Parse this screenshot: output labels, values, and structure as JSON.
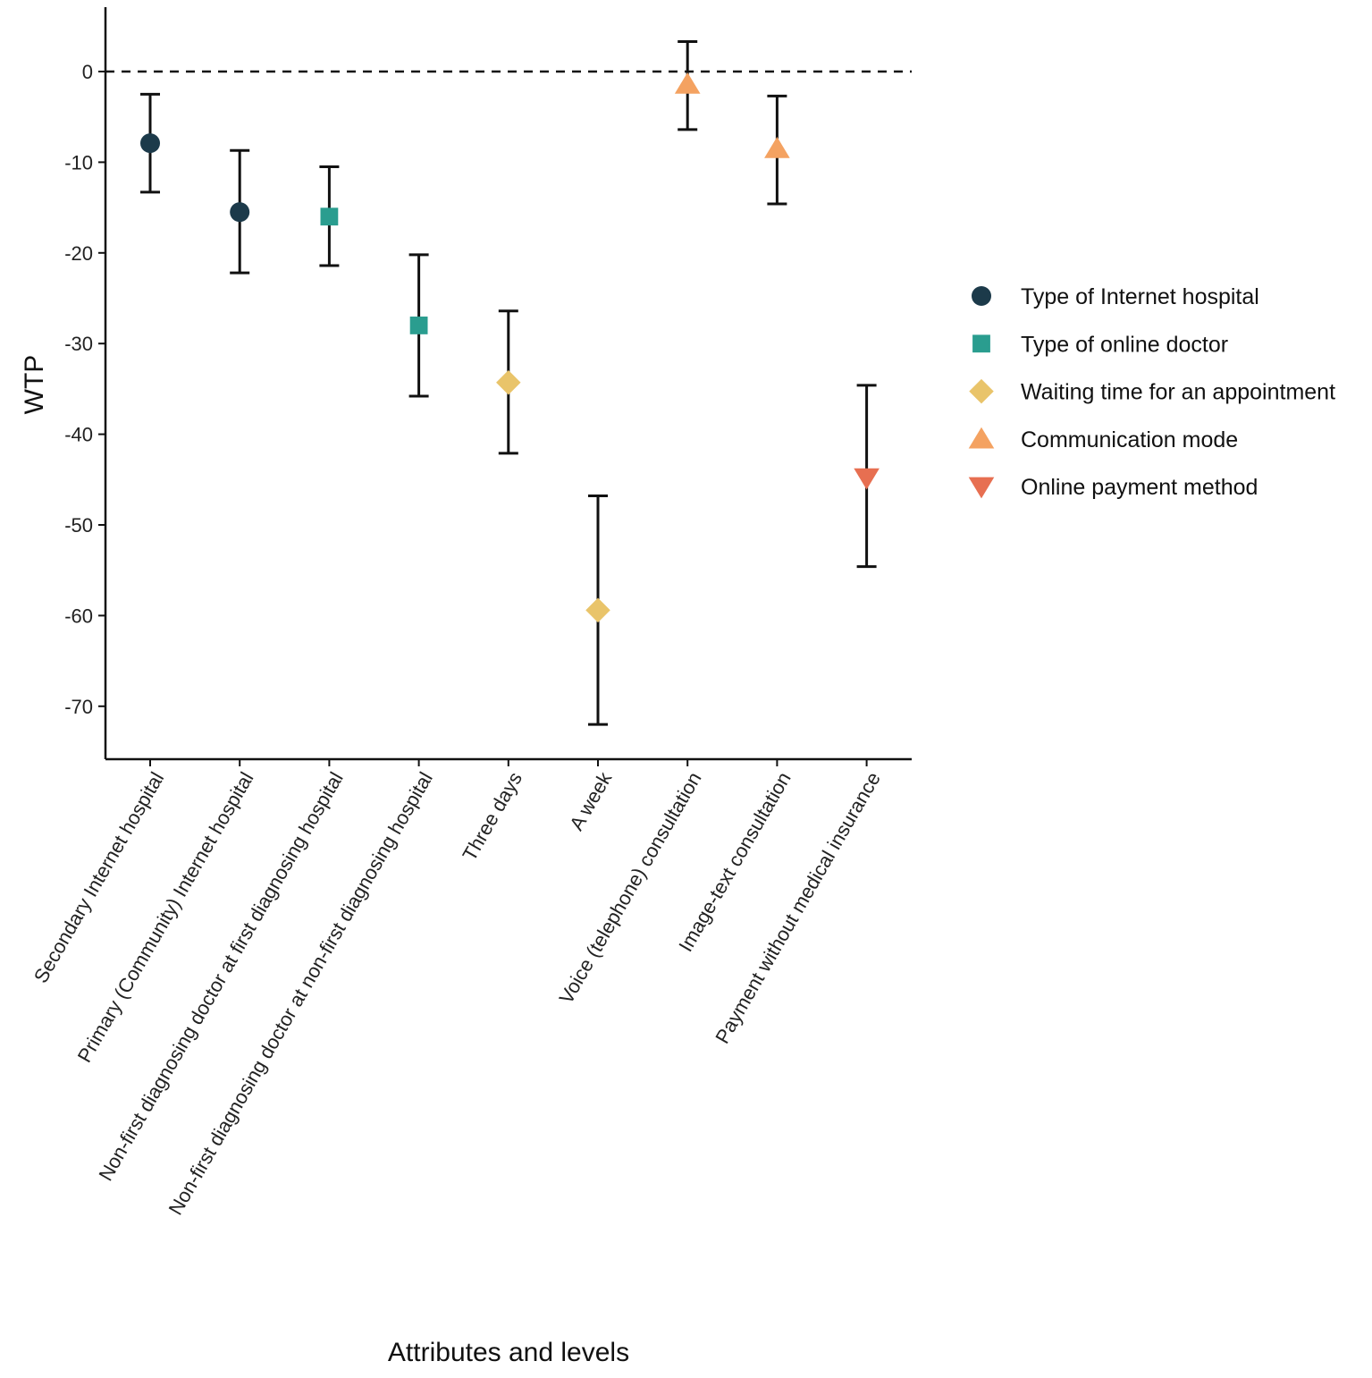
{
  "chart_data": {
    "type": "errorbar-scatter",
    "title": "",
    "xlabel": "Attributes and levels",
    "ylabel": "WTP",
    "ylim": [
      -75.5,
      7
    ],
    "yticks": [
      0,
      -10,
      -20,
      -30,
      -40,
      -50,
      -60,
      -70
    ],
    "reference_line": 0,
    "legend_position": "right",
    "series": [
      {
        "name": "Type of Internet hospital",
        "shape": "circle",
        "color": "#1c3a4a"
      },
      {
        "name": "Type of online doctor",
        "shape": "square",
        "color": "#2a9d8f"
      },
      {
        "name": "Waiting time for an appointment",
        "shape": "diamond",
        "color": "#e9c46a"
      },
      {
        "name": "Communication mode",
        "shape": "triangle-up",
        "color": "#f4a261"
      },
      {
        "name": "Online payment method",
        "shape": "triangle-down",
        "color": "#e76f51"
      }
    ],
    "points": [
      {
        "label": "Secondary Internet hospital",
        "series": 0,
        "value": -7.9,
        "lower": -13.3,
        "upper": -2.5
      },
      {
        "label": "Primary (Community) Internet hospital",
        "series": 0,
        "value": -15.5,
        "lower": -22.2,
        "upper": -8.7
      },
      {
        "label": "Non-first diagnosing doctor at first diagnosing hospital",
        "series": 1,
        "value": -16.0,
        "lower": -21.4,
        "upper": -10.5
      },
      {
        "label": "Non-first diagnosing doctor at non-first diagnosing hospital",
        "series": 1,
        "value": -28.0,
        "lower": -35.8,
        "upper": -20.2
      },
      {
        "label": "Three days",
        "series": 2,
        "value": -34.3,
        "lower": -42.1,
        "upper": -26.4
      },
      {
        "label": "A week",
        "series": 2,
        "value": -59.4,
        "lower": -72.0,
        "upper": -46.8
      },
      {
        "label": "Voice (telephone) consultation",
        "series": 3,
        "value": -1.4,
        "lower": -6.4,
        "upper": 3.3
      },
      {
        "label": "Image-text consultation",
        "series": 3,
        "value": -8.5,
        "lower": -14.6,
        "upper": -2.7
      },
      {
        "label": "Payment without medical insurance",
        "series": 4,
        "value": -44.8,
        "lower": -54.6,
        "upper": -34.6
      }
    ]
  }
}
